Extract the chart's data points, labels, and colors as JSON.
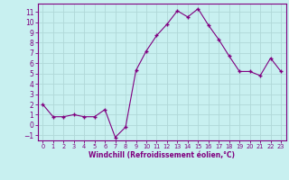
{
  "x": [
    0,
    1,
    2,
    3,
    4,
    5,
    6,
    7,
    8,
    9,
    10,
    11,
    12,
    13,
    14,
    15,
    16,
    17,
    18,
    19,
    20,
    21,
    22,
    23
  ],
  "y": [
    2,
    0.8,
    0.8,
    1.0,
    0.8,
    0.8,
    1.5,
    -1.2,
    -0.2,
    5.3,
    7.2,
    8.7,
    9.8,
    11.1,
    10.5,
    11.3,
    9.7,
    8.3,
    6.7,
    5.2,
    5.2,
    4.8,
    6.5,
    5.2
  ],
  "line_color": "#800080",
  "marker_color": "#800080",
  "bg_color": "#c8f0f0",
  "grid_color": "#b0d8d8",
  "axis_color": "#800080",
  "tick_color": "#800080",
  "xlabel": "Windchill (Refroidissement éolien,°C)",
  "xlim": [
    -0.5,
    23.5
  ],
  "ylim": [
    -1.5,
    11.8
  ],
  "yticks": [
    -1,
    0,
    1,
    2,
    3,
    4,
    5,
    6,
    7,
    8,
    9,
    10,
    11
  ],
  "xticks": [
    0,
    1,
    2,
    3,
    4,
    5,
    6,
    7,
    8,
    9,
    10,
    11,
    12,
    13,
    14,
    15,
    16,
    17,
    18,
    19,
    20,
    21,
    22,
    23
  ]
}
